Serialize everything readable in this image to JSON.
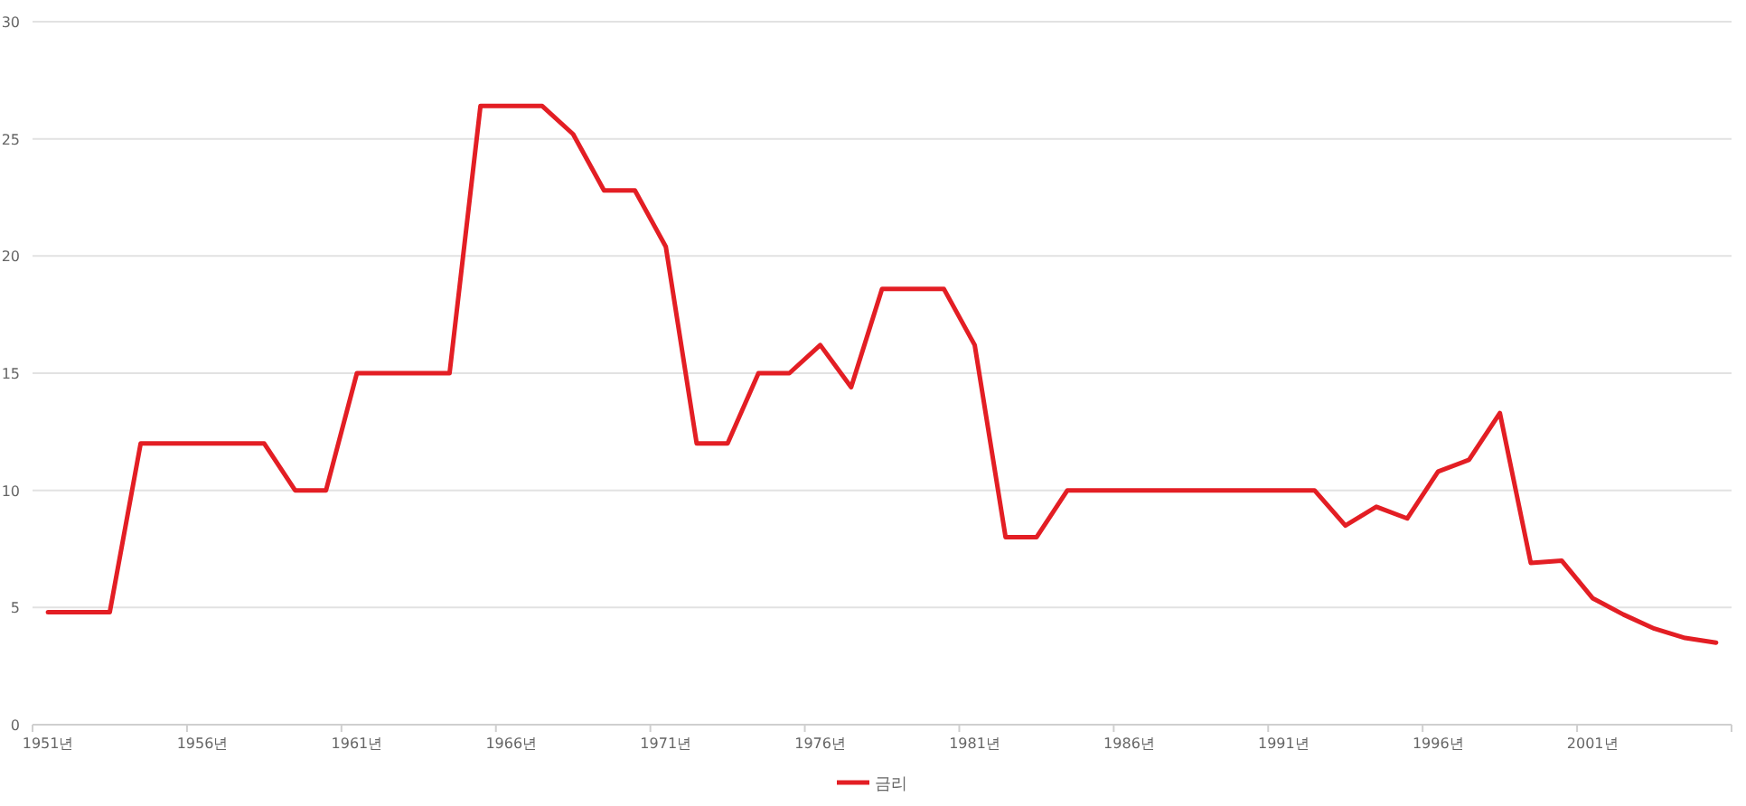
{
  "chart_data": {
    "type": "line",
    "categories": [
      "1951년",
      null,
      null,
      null,
      null,
      "1956년",
      null,
      null,
      null,
      null,
      "1961년",
      null,
      null,
      null,
      null,
      "1966년",
      null,
      null,
      null,
      null,
      "1971년",
      null,
      null,
      null,
      null,
      "1976년",
      null,
      null,
      null,
      null,
      "1981년",
      null,
      null,
      null,
      null,
      "1986년",
      null,
      null,
      null,
      null,
      "1991년",
      null,
      null,
      null,
      null,
      "1996년",
      null,
      null,
      null,
      null,
      "2001년",
      null,
      null,
      null,
      null
    ],
    "series": [
      {
        "name": "금리",
        "color": "#e31e24",
        "values": [
          4.8,
          4.8,
          4.8,
          12,
          12,
          12,
          12,
          12,
          10,
          10,
          15,
          15,
          15,
          15,
          26.4,
          26.4,
          26.4,
          25.2,
          22.8,
          22.8,
          20.4,
          12,
          12,
          15,
          15,
          16.2,
          14.4,
          18.6,
          18.6,
          18.6,
          16.2,
          8,
          8,
          10,
          10,
          10,
          10,
          10,
          10,
          10,
          10,
          10,
          8.5,
          9.3,
          8.8,
          10.8,
          11.3,
          13.3,
          6.9,
          7.0,
          5.4,
          4.7,
          4.1,
          3.7,
          3.5
        ]
      }
    ],
    "ylim": [
      0,
      30
    ],
    "yticks": [
      0,
      5,
      10,
      15,
      20,
      25,
      30
    ],
    "grid": "y",
    "legend": "bottom"
  }
}
